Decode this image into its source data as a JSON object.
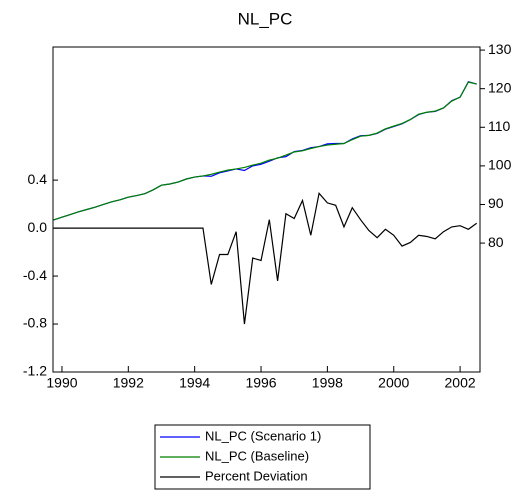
{
  "chart_data": {
    "type": "line",
    "title": "NL_PC",
    "x": [
      1989.75,
      1990,
      1990.25,
      1990.5,
      1990.75,
      1991,
      1991.25,
      1991.5,
      1991.75,
      1992,
      1992.25,
      1992.5,
      1992.75,
      1993,
      1993.25,
      1993.5,
      1993.75,
      1994,
      1994.25,
      1994.5,
      1994.75,
      1995,
      1995.25,
      1995.5,
      1995.75,
      1996,
      1996.25,
      1996.5,
      1996.75,
      1997,
      1997.25,
      1997.5,
      1997.75,
      1998,
      1998.25,
      1998.5,
      1998.75,
      1999,
      1999.25,
      1999.5,
      1999.75,
      2000,
      2000.25,
      2000.5,
      2000.75,
      2001,
      2001.25,
      2001.5,
      2001.75,
      2002,
      2002.25,
      2002.5
    ],
    "series": [
      {
        "name": "NL_PC (Scenario 1)",
        "color": "#0000ff",
        "axis": "y2",
        "values": [
          86.0,
          86.7,
          87.4,
          88.1,
          88.7,
          89.3,
          90.0,
          90.7,
          91.2,
          91.9,
          92.3,
          92.8,
          93.8,
          95.0,
          95.3,
          95.8,
          96.6,
          97.1,
          97.4,
          97.3,
          98.2,
          98.7,
          99.2,
          98.8,
          100.0,
          100.4,
          101.2,
          102.1,
          102.4,
          103.7,
          104.0,
          104.7,
          105.0,
          105.7,
          105.8,
          105.8,
          107.0,
          107.8,
          107.9,
          108.4,
          109.5,
          110.2,
          110.9,
          112.0,
          113.3,
          113.9,
          114.1,
          115.0,
          116.9,
          117.8,
          121.8,
          121.2
        ]
      },
      {
        "name": "NL_PC (Baseline)",
        "color": "#008000",
        "axis": "y2",
        "values": [
          86.0,
          86.7,
          87.4,
          88.1,
          88.7,
          89.3,
          90.0,
          90.7,
          91.2,
          91.9,
          92.3,
          92.8,
          93.8,
          95.0,
          95.3,
          95.8,
          96.6,
          97.1,
          97.4,
          97.8,
          98.4,
          98.9,
          99.2,
          99.6,
          100.2,
          100.7,
          101.5,
          102.0,
          102.8,
          103.6,
          103.9,
          104.5,
          105.0,
          105.4,
          105.6,
          105.8,
          106.8,
          107.7,
          107.9,
          108.5,
          109.6,
          110.3,
          111.0,
          112.0,
          113.4,
          113.9,
          114.2,
          115.0,
          116.8,
          117.8,
          121.7,
          121.2
        ]
      },
      {
        "name": "Percent Deviation",
        "color": "#000000",
        "axis": "y",
        "values": [
          0,
          0,
          0,
          0,
          0,
          0,
          0,
          0,
          0,
          0,
          0,
          0,
          0,
          0,
          0,
          0,
          0,
          0,
          0,
          -0.47,
          -0.22,
          -0.22,
          -0.03,
          -0.8,
          -0.25,
          -0.27,
          0.07,
          -0.44,
          0.12,
          0.08,
          0.23,
          -0.06,
          0.29,
          0.21,
          0.19,
          0.01,
          0.17,
          0.07,
          -0.02,
          -0.08,
          -0.01,
          -0.06,
          -0.15,
          -0.12,
          -0.06,
          -0.07,
          -0.09,
          -0.03,
          0.01,
          0.02,
          -0.01,
          0.04
        ]
      }
    ],
    "xlim": [
      1989.73,
      2002.6
    ],
    "xticks": [
      1990,
      1992,
      1994,
      1996,
      1998,
      2000,
      2002
    ],
    "ylim": [
      -1.2,
      1.51
    ],
    "yticks": [
      -1.2,
      -0.8,
      -0.4,
      {
        "value": 0,
        "label": "0.0"
      },
      0.4
    ],
    "y2lim": [
      46.6,
      130.8
    ],
    "y2ticks": [
      80,
      90,
      100,
      110,
      120,
      130
    ],
    "legend": "bottom"
  }
}
